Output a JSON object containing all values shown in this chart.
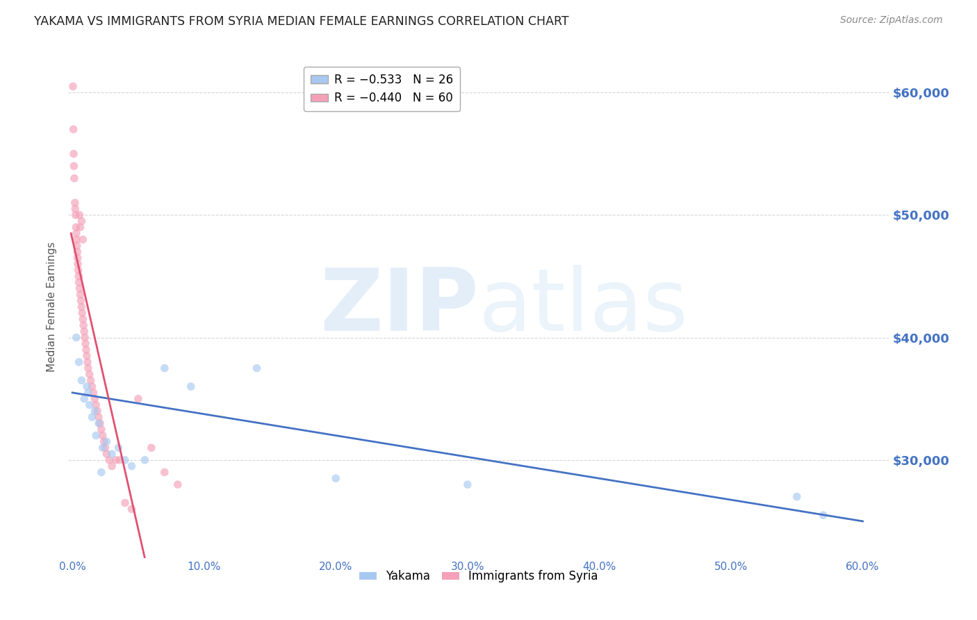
{
  "title": "YAKAMA VS IMMIGRANTS FROM SYRIA MEDIAN FEMALE EARNINGS CORRELATION CHART",
  "source": "Source: ZipAtlas.com",
  "ylabel": "Median Female Earnings",
  "xlabel_ticks": [
    "0.0%",
    "10.0%",
    "20.0%",
    "30.0%",
    "40.0%",
    "50.0%",
    "60.0%"
  ],
  "xlabel_vals": [
    0.0,
    10.0,
    20.0,
    30.0,
    40.0,
    50.0,
    60.0
  ],
  "ylabel_ticks": [
    30000,
    40000,
    50000,
    60000
  ],
  "ylabel_labels": [
    "$30,000",
    "$40,000",
    "$50,000",
    "$60,000"
  ],
  "ylim": [
    22000,
    63000
  ],
  "xlim": [
    -0.3,
    62
  ],
  "watermark_zip": "ZIP",
  "watermark_atlas": "atlas",
  "legend_blue_label": "R = −0.533   N = 26",
  "legend_pink_label": "R = −0.440   N = 60",
  "series_labels": [
    "Yakama",
    "Immigrants from Syria"
  ],
  "yakama_x": [
    0.3,
    0.5,
    0.7,
    0.9,
    1.1,
    1.3,
    1.5,
    1.7,
    2.0,
    2.3,
    2.6,
    3.0,
    3.5,
    4.0,
    4.5,
    5.5,
    7.0,
    9.0,
    14.0,
    20.0,
    30.0,
    55.0,
    57.0,
    1.2,
    1.8,
    2.2
  ],
  "yakama_y": [
    40000,
    38000,
    36500,
    35000,
    36000,
    34500,
    33500,
    34000,
    33000,
    31000,
    31500,
    30500,
    31000,
    30000,
    29500,
    30000,
    37500,
    36000,
    37500,
    28500,
    28000,
    27000,
    25500,
    35500,
    32000,
    29000
  ],
  "syria_x": [
    0.05,
    0.08,
    0.1,
    0.12,
    0.15,
    0.2,
    0.22,
    0.25,
    0.28,
    0.3,
    0.32,
    0.35,
    0.38,
    0.4,
    0.42,
    0.45,
    0.48,
    0.5,
    0.55,
    0.6,
    0.65,
    0.7,
    0.75,
    0.8,
    0.85,
    0.9,
    0.95,
    1.0,
    1.05,
    1.1,
    1.15,
    1.2,
    1.3,
    1.4,
    1.5,
    1.6,
    1.7,
    1.8,
    1.9,
    2.0,
    2.1,
    2.2,
    2.3,
    2.4,
    2.5,
    2.6,
    2.8,
    3.0,
    3.3,
    3.6,
    4.0,
    4.5,
    5.0,
    6.0,
    7.0,
    8.0,
    0.55,
    0.6,
    0.7,
    0.8
  ],
  "syria_y": [
    60500,
    57000,
    55000,
    54000,
    53000,
    51000,
    50500,
    50000,
    49000,
    48500,
    48000,
    47500,
    47000,
    46500,
    46000,
    45500,
    45000,
    44500,
    44000,
    43500,
    43000,
    42500,
    42000,
    41500,
    41000,
    40500,
    40000,
    39500,
    39000,
    38500,
    38000,
    37500,
    37000,
    36500,
    36000,
    35500,
    35000,
    34500,
    34000,
    33500,
    33000,
    32500,
    32000,
    31500,
    31000,
    30500,
    30000,
    29500,
    30000,
    30000,
    26500,
    26000,
    35000,
    31000,
    29000,
    28000,
    50000,
    49000,
    49500,
    48000
  ],
  "blue_line_x": [
    0.0,
    60.0
  ],
  "blue_line_y": [
    35500,
    25000
  ],
  "pink_line_x": [
    -0.1,
    5.5
  ],
  "pink_line_y": [
    48500,
    22000
  ],
  "marker_size": 70,
  "blue_color": "#a8c8f0",
  "pink_color": "#f4a0b8",
  "blue_line_color": "#4472c4",
  "pink_line_color": "#e05070",
  "grid_color": "#cccccc",
  "bg_color": "#ffffff",
  "title_color": "#222222",
  "axis_label_color": "#4472c4"
}
